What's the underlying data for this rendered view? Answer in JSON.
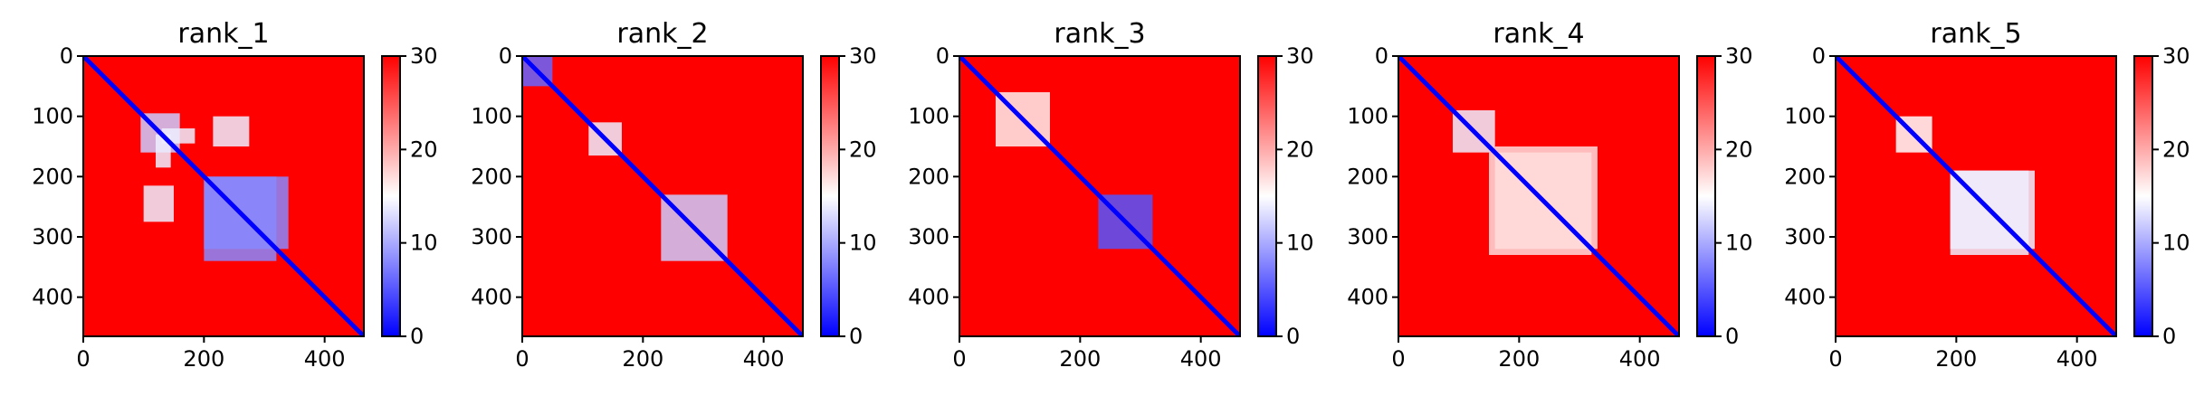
{
  "figure": {
    "colormap": {
      "name": "bwr",
      "low_color": "#0000ff",
      "mid_color": "#ffffff",
      "high_color": "#ff0000"
    },
    "panels": [
      {
        "title": "rank_1"
      },
      {
        "title": "rank_2"
      },
      {
        "title": "rank_3"
      },
      {
        "title": "rank_4"
      },
      {
        "title": "rank_5"
      }
    ]
  },
  "chart_data": [
    {
      "type": "heatmap",
      "title": "rank_1",
      "x_ticks": [
        "0",
        "200",
        "400"
      ],
      "y_ticks": [
        "0",
        "100",
        "200",
        "300",
        "400"
      ],
      "xlim": [
        0,
        465
      ],
      "ylim": [
        465,
        0
      ],
      "colorbar": {
        "range": [
          0,
          30
        ],
        "ticks": [
          "0",
          "10",
          "20",
          "30"
        ]
      },
      "matrix_size": 465,
      "diagonal_value": 0,
      "background_value": 30,
      "low_regions": [
        {
          "x": [
            95,
            160
          ],
          "y": [
            95,
            160
          ],
          "value": 12
        },
        {
          "x": [
            130,
            185
          ],
          "y": [
            120,
            145
          ],
          "value": 14
        },
        {
          "x": [
            100,
            150
          ],
          "y": [
            215,
            275
          ],
          "value": 14
        },
        {
          "x": [
            200,
            340
          ],
          "y": [
            200,
            320
          ],
          "value": 8
        }
      ]
    },
    {
      "type": "heatmap",
      "title": "rank_2",
      "x_ticks": [
        "0",
        "200",
        "400"
      ],
      "y_ticks": [
        "0",
        "100",
        "200",
        "300",
        "400"
      ],
      "xlim": [
        0,
        465
      ],
      "ylim": [
        465,
        0
      ],
      "colorbar": {
        "range": [
          0,
          30
        ],
        "ticks": [
          "0",
          "10",
          "20",
          "30"
        ]
      },
      "matrix_size": 465,
      "diagonal_value": 0,
      "background_value": 30,
      "low_regions": [
        {
          "x": [
            0,
            50
          ],
          "y": [
            0,
            50
          ],
          "value": 6
        },
        {
          "x": [
            110,
            165
          ],
          "y": [
            110,
            165
          ],
          "value": 14
        },
        {
          "x": [
            230,
            340
          ],
          "y": [
            230,
            340
          ],
          "value": 12
        }
      ]
    },
    {
      "type": "heatmap",
      "title": "rank_3",
      "x_ticks": [
        "0",
        "200",
        "400"
      ],
      "y_ticks": [
        "0",
        "100",
        "200",
        "300",
        "400"
      ],
      "xlim": [
        0,
        465
      ],
      "ylim": [
        465,
        0
      ],
      "colorbar": {
        "range": [
          0,
          30
        ],
        "ticks": [
          "0",
          "10",
          "20",
          "30"
        ]
      },
      "matrix_size": 465,
      "diagonal_value": 0,
      "background_value": 30,
      "low_regions": [
        {
          "x": [
            60,
            150
          ],
          "y": [
            60,
            150
          ],
          "value": 16
        },
        {
          "x": [
            230,
            320
          ],
          "y": [
            230,
            320
          ],
          "value": 5
        }
      ]
    },
    {
      "type": "heatmap",
      "title": "rank_4",
      "x_ticks": [
        "0",
        "200",
        "400"
      ],
      "y_ticks": [
        "0",
        "100",
        "200",
        "300",
        "400"
      ],
      "xlim": [
        0,
        465
      ],
      "ylim": [
        465,
        0
      ],
      "colorbar": {
        "range": [
          0,
          30
        ],
        "ticks": [
          "0",
          "10",
          "20",
          "30"
        ]
      },
      "matrix_size": 465,
      "diagonal_value": 0,
      "background_value": 30,
      "low_regions": [
        {
          "x": [
            90,
            160
          ],
          "y": [
            90,
            160
          ],
          "value": 14
        },
        {
          "x": [
            160,
            330
          ],
          "y": [
            150,
            320
          ],
          "value": 17
        }
      ]
    },
    {
      "type": "heatmap",
      "title": "rank_5",
      "x_ticks": [
        "0",
        "200",
        "400"
      ],
      "y_ticks": [
        "0",
        "100",
        "200",
        "300",
        "400"
      ],
      "xlim": [
        0,
        465
      ],
      "ylim": [
        465,
        0
      ],
      "colorbar": {
        "range": [
          0,
          30
        ],
        "ticks": [
          "0",
          "10",
          "20",
          "30"
        ]
      },
      "matrix_size": 465,
      "diagonal_value": 0,
      "background_value": 30,
      "low_regions": [
        {
          "x": [
            100,
            160
          ],
          "y": [
            100,
            160
          ],
          "value": 15
        },
        {
          "x": [
            190,
            330
          ],
          "y": [
            190,
            320
          ],
          "value": 14
        }
      ]
    }
  ]
}
